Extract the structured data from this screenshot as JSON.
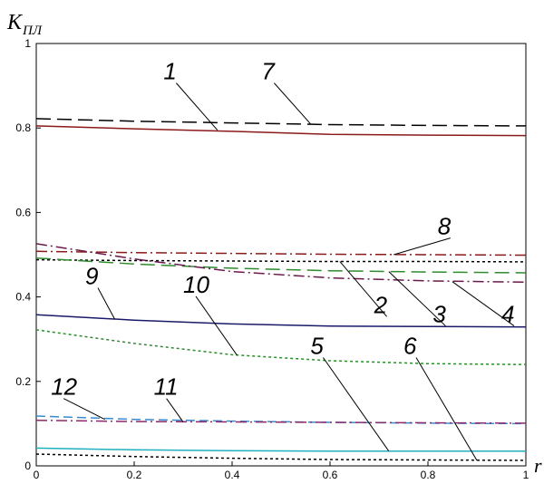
{
  "chart_data": {
    "type": "line",
    "xlim": [
      0,
      1
    ],
    "ylim": [
      0,
      1
    ],
    "ylabel_main": "K",
    "ylabel_sub": "ПЛ",
    "xlabel": "r",
    "x_ticks": [
      "0",
      "0.2",
      "0.4",
      "0.6",
      "0.8",
      "1"
    ],
    "y_ticks": [
      "0",
      "0.2",
      "0.4",
      "0.6",
      "0.8",
      "1"
    ],
    "x_tick_values": [
      0,
      0.2,
      0.4,
      0.6,
      0.8,
      1
    ],
    "y_tick_values": [
      0,
      0.2,
      0.4,
      0.6,
      0.8,
      1
    ],
    "grid": false,
    "series": [
      {
        "name": "1",
        "color": "#8b1a1a",
        "dash": "solid",
        "x": [
          0,
          0.2,
          0.4,
          0.6,
          0.8,
          1
        ],
        "y": [
          0.805,
          0.798,
          0.792,
          0.785,
          0.783,
          0.782
        ]
      },
      {
        "name": "7",
        "color": "#000000",
        "dash": "long",
        "x": [
          0,
          0.2,
          0.4,
          0.6,
          0.8,
          1
        ],
        "y": [
          0.822,
          0.816,
          0.812,
          0.808,
          0.806,
          0.805
        ]
      },
      {
        "name": "8",
        "color": "#8b1a1a",
        "dash": "dashdot",
        "x": [
          0,
          0.2,
          0.4,
          0.6,
          0.8,
          1
        ],
        "y": [
          0.508,
          0.505,
          0.503,
          0.501,
          0.5,
          0.499
        ]
      },
      {
        "name": "2",
        "color": "#000000",
        "dash": "dotted",
        "x": [
          0,
          0.2,
          0.4,
          0.6,
          0.8,
          1
        ],
        "y": [
          0.488,
          0.486,
          0.485,
          0.484,
          0.484,
          0.483
        ]
      },
      {
        "name": "3",
        "color": "#2e8b2e",
        "dash": "long",
        "x": [
          0,
          0.2,
          0.4,
          0.6,
          0.8,
          1
        ],
        "y": [
          0.492,
          0.478,
          0.468,
          0.462,
          0.459,
          0.457
        ]
      },
      {
        "name": "4",
        "color": "#6a1a4a",
        "dash": "dashdot",
        "x": [
          0,
          0.2,
          0.4,
          0.6,
          0.8,
          1
        ],
        "y": [
          0.526,
          0.49,
          0.46,
          0.445,
          0.438,
          0.435
        ]
      },
      {
        "name": "9",
        "color": "#1a1a6a",
        "dash": "solid",
        "x": [
          0,
          0.2,
          0.4,
          0.6,
          0.8,
          1
        ],
        "y": [
          0.358,
          0.345,
          0.336,
          0.331,
          0.33,
          0.329
        ]
      },
      {
        "name": "10",
        "color": "#2e8b2e",
        "dash": "dotted",
        "x": [
          0,
          0.2,
          0.4,
          0.6,
          0.8,
          1
        ],
        "y": [
          0.322,
          0.29,
          0.263,
          0.249,
          0.242,
          0.24
        ]
      },
      {
        "name": "12",
        "color": "#3a8ad0",
        "dash": "dashed",
        "x": [
          0,
          0.2,
          0.4,
          0.6,
          0.8,
          1
        ],
        "y": [
          0.118,
          0.11,
          0.106,
          0.103,
          0.101,
          0.1
        ]
      },
      {
        "name": "11",
        "color": "#8a2a6a",
        "dash": "dashdot",
        "x": [
          0,
          0.2,
          0.4,
          0.6,
          0.8,
          1
        ],
        "y": [
          0.108,
          0.105,
          0.104,
          0.103,
          0.102,
          0.101
        ]
      },
      {
        "name": "5",
        "color": "#20b0c0",
        "dash": "solid",
        "x": [
          0,
          0.2,
          0.4,
          0.6,
          0.8,
          1
        ],
        "y": [
          0.042,
          0.038,
          0.036,
          0.035,
          0.035,
          0.035
        ]
      },
      {
        "name": "6",
        "color": "#000000",
        "dash": "dotted",
        "x": [
          0,
          0.2,
          0.4,
          0.6,
          0.8,
          1
        ],
        "y": [
          0.028,
          0.022,
          0.018,
          0.015,
          0.014,
          0.013
        ]
      }
    ],
    "labels": [
      {
        "text": "1",
        "lx": 0.26,
        "ly": 0.915,
        "px": 0.37,
        "py": 0.795
      },
      {
        "text": "7",
        "lx": 0.46,
        "ly": 0.915,
        "px": 0.56,
        "py": 0.81
      },
      {
        "text": "8",
        "lx": 0.82,
        "ly": 0.548,
        "px": 0.73,
        "py": 0.5
      },
      {
        "text": "2",
        "lx": 0.69,
        "ly": 0.362,
        "px": 0.62,
        "py": 0.484
      },
      {
        "text": "3",
        "lx": 0.81,
        "ly": 0.34,
        "px": 0.72,
        "py": 0.46
      },
      {
        "text": "4",
        "lx": 0.95,
        "ly": 0.34,
        "px": 0.85,
        "py": 0.436
      },
      {
        "text": "9",
        "lx": 0.1,
        "ly": 0.43,
        "px": 0.16,
        "py": 0.348
      },
      {
        "text": "10",
        "lx": 0.3,
        "ly": 0.41,
        "px": 0.41,
        "py": 0.262
      },
      {
        "text": "12",
        "lx": 0.03,
        "ly": 0.168,
        "px": 0.14,
        "py": 0.11
      },
      {
        "text": "11",
        "lx": 0.24,
        "ly": 0.168,
        "px": 0.3,
        "py": 0.104
      },
      {
        "text": "5",
        "lx": 0.56,
        "ly": 0.265,
        "px": 0.72,
        "py": 0.035
      },
      {
        "text": "6",
        "lx": 0.75,
        "ly": 0.265,
        "px": 0.9,
        "py": 0.013
      }
    ]
  }
}
